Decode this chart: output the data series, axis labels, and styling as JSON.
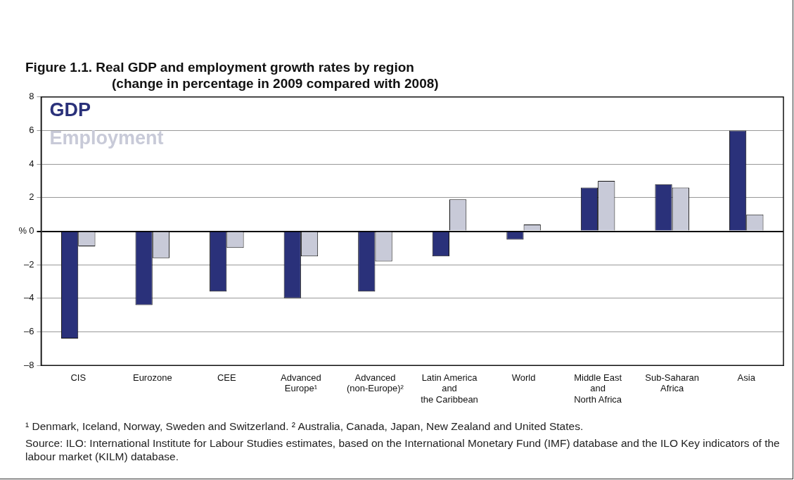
{
  "chart_data": {
    "type": "bar",
    "title": "Figure 1.1.  Real GDP and employment growth rates by region",
    "subtitle": "(change in percentage in 2009 compared with 2008)",
    "ylabel": "%",
    "categories": [
      "CIS",
      "Eurozone",
      "CEE",
      "Advanced\nEurope¹",
      "Advanced\n(non-Europe)²",
      "Latin America\nand\nthe Caribbean",
      "World",
      "Middle East\nand\nNorth Africa",
      "Sub-Saharan\nAfrica",
      "Asia"
    ],
    "series": [
      {
        "name": "GDP",
        "color": "#2a317a",
        "values": [
          -6.4,
          -4.4,
          -3.6,
          -4.0,
          -3.6,
          -1.5,
          -0.5,
          2.6,
          2.8,
          6.0
        ]
      },
      {
        "name": "Employment",
        "color": "#c8cad8",
        "values": [
          -0.9,
          -1.6,
          -1.0,
          -1.5,
          -1.8,
          1.9,
          0.4,
          3.0,
          2.6,
          1.0
        ]
      }
    ],
    "ylim": [
      -8,
      8
    ],
    "yticks": [
      {
        "value": -8,
        "label": "–8"
      },
      {
        "value": -6,
        "label": "–6"
      },
      {
        "value": -4,
        "label": "–4"
      },
      {
        "value": -2,
        "label": "–2"
      },
      0,
      2,
      4,
      6,
      8
    ],
    "grid": "y",
    "legend": "top left",
    "annotations": [
      "¹ Denmark, Iceland, Norway, Sweden and Switzerland. ² Australia, Canada, Japan, New Zealand and United States.",
      "Source: ILO: International Institute for Labour Studies estimates, based on the International Monetary Fund (IMF) database and the ILO Key indicators of the labour market (KILM) database."
    ]
  }
}
